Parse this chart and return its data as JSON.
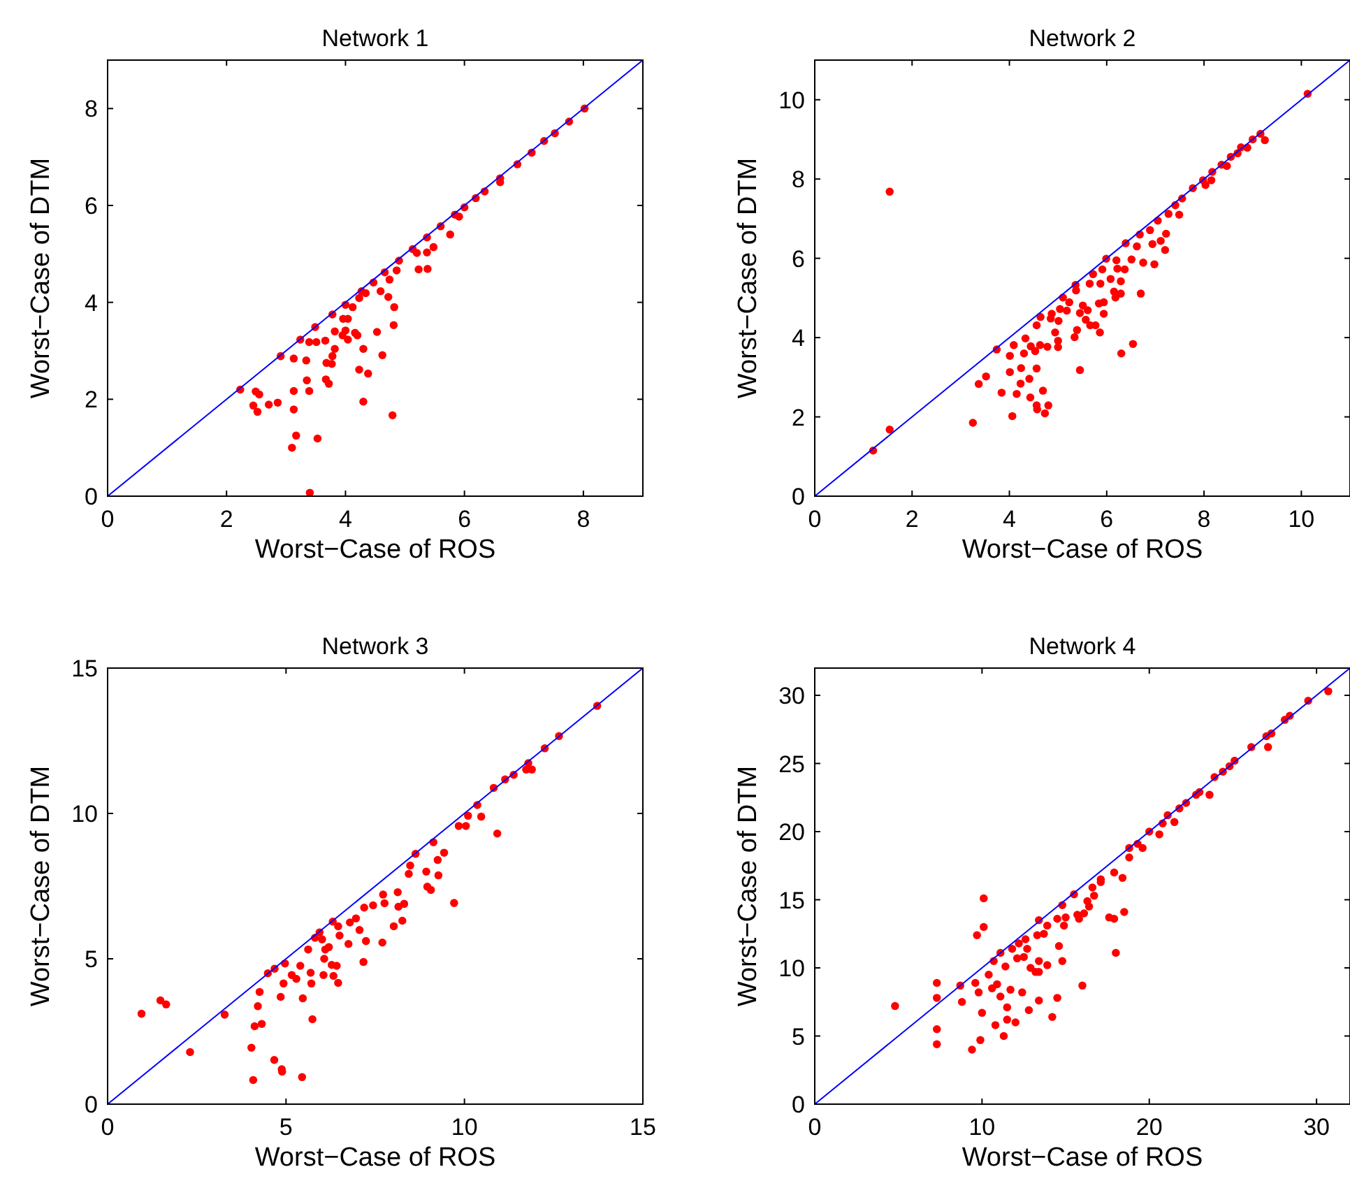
{
  "chart_data": [
    {
      "type": "scatter",
      "title": "Network 1",
      "xlabel": "Worst−Case of ROS",
      "ylabel": "Worst−Case of DTM",
      "xlim": [
        0,
        9
      ],
      "ylim": [
        0,
        9
      ],
      "xticks": [
        0,
        2,
        4,
        6,
        8
      ],
      "yticks": [
        0,
        2,
        4,
        6,
        8
      ],
      "marker": "circle",
      "series": [
        {
          "color": "#ff0000",
          "x": [
            2.23,
            2.91,
            3.24,
            3.49,
            3.78,
            4.0,
            4.27,
            4.47,
            4.66,
            4.9,
            5.13,
            5.37,
            5.6,
            5.84,
            6.0,
            6.19,
            6.34,
            6.6,
            6.89,
            7.13,
            7.34,
            7.52,
            7.76,
            8.02,
            2.49,
            2.55,
            2.45,
            2.52,
            2.71,
            2.86,
            3.13,
            3.13,
            3.13,
            3.17,
            3.1,
            3.39,
            3.34,
            3.35,
            3.39,
            3.53,
            3.4,
            3.51,
            3.66,
            3.68,
            3.67,
            3.72,
            3.78,
            3.77,
            3.82,
            3.82,
            3.95,
            4.0,
            4.04,
            4.16,
            4.2,
            3.96,
            4.04,
            4.12,
            4.23,
            4.3,
            4.23,
            4.3,
            4.38,
            4.34,
            4.53,
            4.59,
            4.72,
            4.82,
            4.81,
            4.62,
            4.79,
            4.74,
            4.86,
            5.23,
            5.38,
            5.2,
            5.37,
            5.48,
            5.76,
            5.91,
            6.6
          ],
          "values": [
            2.2,
            2.89,
            3.23,
            3.49,
            3.75,
            3.95,
            4.23,
            4.41,
            4.62,
            4.86,
            5.1,
            5.34,
            5.57,
            5.81,
            5.96,
            6.15,
            6.29,
            6.56,
            6.85,
            7.09,
            7.33,
            7.49,
            7.73,
            8.0,
            2.16,
            2.1,
            1.87,
            1.74,
            1.89,
            1.93,
            2.84,
            2.17,
            1.79,
            1.25,
            1.0,
            3.18,
            2.8,
            2.39,
            2.17,
            1.19,
            0.07,
            3.18,
            3.21,
            2.75,
            2.41,
            2.32,
            2.89,
            2.73,
            3.04,
            3.4,
            3.32,
            3.42,
            3.23,
            3.37,
            3.32,
            3.66,
            3.66,
            3.9,
            4.09,
            3.04,
            2.61,
            1.95,
            2.53,
            4.19,
            3.39,
            4.23,
            4.11,
            3.9,
            3.53,
            2.91,
            1.67,
            4.47,
            4.66,
            4.68,
            4.69,
            5.02,
            5.03,
            5.14,
            5.4,
            5.77,
            6.48
          ]
        },
        {
          "type": "line",
          "marker": "none",
          "color": "#0000ff",
          "x": [
            0,
            9
          ],
          "values": [
            0,
            9
          ]
        }
      ]
    },
    {
      "type": "scatter",
      "title": "Network 2",
      "xlabel": "Worst−Case of ROS",
      "ylabel": "Worst−Case of DTM",
      "xlim": [
        0,
        11
      ],
      "ylim": [
        0,
        11
      ],
      "xticks": [
        0,
        2,
        4,
        6,
        8,
        10
      ],
      "yticks": [
        0,
        2,
        4,
        6,
        8,
        10
      ],
      "marker": "circle",
      "series": [
        {
          "color": "#ff0000",
          "x": [
            1.2,
            1.54,
            1.54,
            3.25,
            3.37,
            3.52,
            3.74,
            3.84,
            4.06,
            4.01,
            4.01,
            4.09,
            4.15,
            4.23,
            4.24,
            4.3,
            4.33,
            4.43,
            4.41,
            4.44,
            4.53,
            4.56,
            4.56,
            4.57,
            4.63,
            4.69,
            4.73,
            4.8,
            4.78,
            4.56,
            4.64,
            4.87,
            4.85,
            4.94,
            5.0,
            5.0,
            5.01,
            5.04,
            5.1,
            5.18,
            5.23,
            5.37,
            5.36,
            5.34,
            5.39,
            5.45,
            5.45,
            5.51,
            5.57,
            5.61,
            5.66,
            5.65,
            5.72,
            5.77,
            5.86,
            5.84,
            5.94,
            5.94,
            5.87,
            5.91,
            5.99,
            6.08,
            6.15,
            6.18,
            6.2,
            6.22,
            6.29,
            6.29,
            6.3,
            6.37,
            6.39,
            6.54,
            6.51,
            6.62,
            6.68,
            6.7,
            6.75,
            6.94,
            6.98,
            6.89,
            7.05,
            7.11,
            7.2,
            7.22,
            7.27,
            7.41,
            7.49,
            7.55,
            7.77,
            7.98,
            8.03,
            8.17,
            8.15,
            8.36,
            8.47,
            8.55,
            8.69,
            8.76,
            8.89,
            9.0,
            9.16,
            9.25,
            10.13
          ],
          "values": [
            1.15,
            1.68,
            7.68,
            1.85,
            2.83,
            3.02,
            3.7,
            2.61,
            2.02,
            3.13,
            3.54,
            3.81,
            2.58,
            2.84,
            3.23,
            3.6,
            3.98,
            2.49,
            2.96,
            3.78,
            3.66,
            3.22,
            2.29,
            2.19,
            3.81,
            2.66,
            2.09,
            2.29,
            3.77,
            4.31,
            4.52,
            4.6,
            4.48,
            4.13,
            3.76,
            3.92,
            4.42,
            4.72,
            5.01,
            4.68,
            4.89,
            5.19,
            5.33,
            4.01,
            4.19,
            3.18,
            4.62,
            4.81,
            4.45,
            4.69,
            4.31,
            5.36,
            5.6,
            4.31,
            4.13,
            4.86,
            4.89,
            4.6,
            5.36,
            5.72,
            5.99,
            5.48,
            5.16,
            5.01,
            5.95,
            5.74,
            5.42,
            5.11,
            3.6,
            5.72,
            6.38,
            3.84,
            5.97,
            6.3,
            6.6,
            5.11,
            5.89,
            6.36,
            5.85,
            6.71,
            6.95,
            6.44,
            6.21,
            6.62,
            7.12,
            7.34,
            7.1,
            7.51,
            7.77,
            7.97,
            7.85,
            8.18,
            7.97,
            8.36,
            8.33,
            8.56,
            8.65,
            8.8,
            8.79,
            9.0,
            9.14,
            8.98,
            10.15
          ]
        },
        {
          "type": "line",
          "marker": "none",
          "color": "#0000ff",
          "x": [
            0,
            11
          ],
          "values": [
            0,
            11
          ]
        }
      ]
    },
    {
      "type": "scatter",
      "title": "Network 3",
      "xlabel": "Worst−Case of ROS",
      "ylabel": "Worst−Case of DTM",
      "xlim": [
        0,
        15
      ],
      "ylim": [
        0,
        15
      ],
      "xticks": [
        0,
        5,
        10,
        15
      ],
      "yticks": [
        0,
        5,
        10,
        15
      ],
      "marker": "circle",
      "series": [
        {
          "color": "#ff0000",
          "x": [
            0.95,
            1.48,
            1.64,
            2.31,
            3.28,
            4.03,
            4.08,
            4.12,
            4.32,
            4.21,
            4.26,
            4.49,
            4.68,
            4.67,
            4.88,
            4.89,
            4.85,
            4.93,
            4.97,
            5.16,
            5.29,
            5.4,
            5.47,
            5.45,
            5.69,
            5.71,
            5.74,
            5.62,
            5.81,
            5.94,
            6.01,
            6.07,
            6.05,
            6.1,
            6.2,
            6.28,
            6.33,
            6.46,
            6.42,
            6.31,
            6.46,
            6.5,
            6.75,
            6.79,
            6.96,
            7.06,
            7.24,
            7.17,
            7.19,
            7.44,
            7.72,
            7.7,
            7.76,
            8.02,
            8.13,
            8.15,
            8.26,
            8.31,
            8.44,
            8.48,
            8.63,
            8.93,
            8.96,
            9.06,
            9.25,
            9.27,
            9.13,
            9.43,
            9.71,
            9.84,
            10.04,
            10.1,
            10.47,
            10.36,
            10.92,
            10.82,
            11.14,
            11.38,
            11.73,
            11.89,
            11.79,
            12.25,
            12.65,
            13.72
          ],
          "values": [
            3.11,
            3.57,
            3.43,
            1.79,
            3.08,
            1.94,
            0.83,
            2.68,
            2.76,
            3.37,
            3.86,
            4.5,
            4.66,
            1.52,
            1.2,
            1.12,
            3.69,
            4.15,
            4.84,
            4.44,
            4.31,
            4.76,
            3.64,
            0.93,
            4.52,
            4.15,
            2.92,
            5.32,
            5.72,
            5.91,
            5.67,
            5.0,
            4.44,
            5.32,
            5.4,
            4.79,
            4.41,
            4.17,
            4.76,
            6.28,
            6.12,
            5.8,
            5.51,
            6.25,
            6.39,
            5.99,
            5.61,
            4.89,
            6.76,
            6.84,
            7.21,
            5.56,
            6.91,
            6.12,
            7.29,
            6.79,
            6.31,
            6.89,
            7.92,
            8.21,
            8.61,
            8.0,
            7.48,
            7.37,
            8.4,
            7.87,
            9.01,
            8.65,
            6.92,
            9.57,
            9.57,
            9.92,
            9.89,
            10.29,
            9.31,
            10.88,
            11.17,
            11.33,
            11.51,
            11.51,
            11.73,
            12.24,
            12.66,
            13.7
          ]
        },
        {
          "type": "line",
          "marker": "none",
          "color": "#0000ff",
          "x": [
            0,
            15
          ],
          "values": [
            0,
            15
          ]
        }
      ]
    },
    {
      "type": "scatter",
      "title": "Network 4",
      "xlabel": "Worst−Case of ROS",
      "ylabel": "Worst−Case of DTM",
      "xlim": [
        0,
        32
      ],
      "ylim": [
        0,
        32
      ],
      "xticks": [
        0,
        10,
        20,
        30
      ],
      "yticks": [
        0,
        5,
        10,
        15,
        20,
        25,
        30
      ],
      "marker": "circle",
      "series": [
        {
          "color": "#ff0000",
          "x": [
            4.8,
            7.3,
            7.3,
            7.3,
            7.3,
            8.7,
            8.8,
            9.4,
            9.6,
            9.7,
            9.8,
            9.9,
            10.0,
            10.1,
            10.1,
            10.4,
            10.6,
            10.7,
            10.8,
            10.9,
            11.1,
            11.1,
            11.3,
            11.4,
            11.5,
            11.5,
            11.7,
            11.8,
            12.1,
            12.0,
            12.2,
            12.4,
            12.5,
            12.6,
            12.7,
            12.8,
            12.9,
            13.2,
            13.3,
            13.4,
            13.4,
            13.4,
            13.4,
            13.7,
            13.9,
            13.9,
            14.2,
            14.5,
            14.5,
            14.6,
            14.8,
            14.9,
            14.8,
            15.0,
            15.5,
            15.7,
            15.8,
            16.0,
            16.1,
            16.3,
            16.4,
            16.6,
            16.7,
            17.1,
            17.1,
            17.6,
            17.9,
            18.0,
            17.9,
            18.4,
            18.5,
            18.8,
            18.8,
            19.3,
            19.6,
            20.0,
            20.6,
            20.8,
            21.1,
            21.5,
            21.8,
            22.2,
            22.8,
            23.0,
            23.6,
            23.9,
            24.4,
            24.8,
            25.1,
            26.1,
            27.0,
            27.1,
            27.3,
            28.1,
            28.4,
            29.5,
            30.7
          ],
          "values": [
            7.2,
            8.9,
            7.8,
            5.5,
            4.4,
            8.7,
            7.5,
            4.0,
            8.9,
            12.4,
            8.2,
            4.7,
            6.7,
            13.0,
            15.1,
            9.5,
            8.5,
            10.5,
            5.8,
            8.8,
            7.9,
            11.1,
            5.0,
            10.1,
            6.2,
            7.1,
            8.4,
            11.4,
            10.7,
            6.0,
            11.8,
            8.2,
            10.8,
            12.1,
            11.4,
            6.9,
            10.0,
            9.7,
            12.4,
            9.7,
            7.6,
            10.5,
            13.5,
            12.5,
            13.1,
            10.2,
            6.4,
            7.8,
            13.6,
            11.6,
            10.5,
            13.1,
            14.6,
            13.7,
            15.4,
            13.9,
            13.6,
            8.7,
            14.0,
            14.9,
            14.5,
            15.9,
            15.3,
            16.5,
            16.3,
            13.7,
            13.6,
            11.1,
            17.0,
            16.6,
            14.1,
            18.1,
            18.8,
            19.1,
            18.8,
            20.0,
            19.8,
            20.6,
            21.2,
            20.7,
            21.7,
            22.1,
            22.7,
            22.9,
            22.7,
            24.0,
            24.4,
            24.8,
            25.2,
            26.2,
            27.0,
            26.2,
            27.2,
            28.2,
            28.5,
            29.6,
            30.3
          ]
        },
        {
          "type": "line",
          "marker": "none",
          "color": "#0000ff",
          "x": [
            0,
            32
          ],
          "values": [
            0,
            32
          ]
        }
      ]
    }
  ]
}
